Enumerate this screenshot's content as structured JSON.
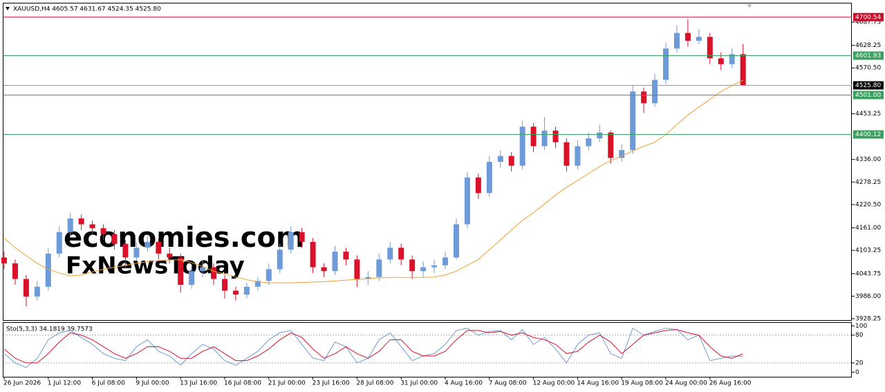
{
  "chart_data": {
    "type": "candlestick",
    "header": "XAUUSD,H4  4605.57 4631.67 4524.35 4525.80",
    "watermarks": [
      "economies.com",
      "FxNewsToday"
    ],
    "categories": [
      "26 Jun 2026",
      null,
      null,
      null,
      "1 Jul 12:00",
      null,
      null,
      null,
      "6 Jul 08:00",
      null,
      null,
      null,
      "9 Jul 00:00",
      null,
      null,
      null,
      "13 Jul 16:00",
      null,
      null,
      null,
      "16 Jul 08:00",
      null,
      null,
      null,
      "21 Jul 00:00",
      null,
      null,
      null,
      "23 Jul 16:00",
      null,
      null,
      null,
      "28 Jul 08:00",
      null,
      null,
      null,
      "31 Jul 00:00",
      null,
      null,
      null,
      "4 Aug 16:00",
      null,
      null,
      null,
      "7 Aug 08:00",
      null,
      null,
      null,
      "12 Aug 00:00",
      null,
      null,
      null,
      "14 Aug 16:00",
      null,
      null,
      null,
      "19 Aug 08:00",
      null,
      null,
      null,
      "24 Aug 00:00",
      null,
      null,
      null,
      "26 Aug 16:00",
      null,
      null,
      null
    ],
    "ohlc": [
      [
        4085,
        4100,
        4055,
        4070
      ],
      [
        4070,
        4080,
        4015,
        4030
      ],
      [
        4030,
        4040,
        3960,
        3985
      ],
      [
        3985,
        4025,
        3975,
        4010
      ],
      [
        4010,
        4110,
        4000,
        4095
      ],
      [
        4095,
        4165,
        4085,
        4150
      ],
      [
        4150,
        4200,
        4140,
        4185
      ],
      [
        4185,
        4195,
        4155,
        4170
      ],
      [
        4170,
        4180,
        4145,
        4160
      ],
      [
        4160,
        4170,
        4130,
        4145
      ],
      [
        4145,
        4155,
        4105,
        4120
      ],
      [
        4120,
        4130,
        4060,
        4085
      ],
      [
        4085,
        4125,
        4075,
        4110
      ],
      [
        4110,
        4140,
        4100,
        4125
      ],
      [
        4125,
        4135,
        4080,
        4095
      ],
      [
        4095,
        4110,
        4070,
        4085
      ],
      [
        4085,
        4095,
        3995,
        4015
      ],
      [
        4015,
        4065,
        4005,
        4050
      ],
      [
        4050,
        4080,
        4035,
        4060
      ],
      [
        4060,
        4070,
        4015,
        4030
      ],
      [
        4030,
        4040,
        3980,
        4000
      ],
      [
        4000,
        4010,
        3975,
        3990
      ],
      [
        3990,
        4020,
        3980,
        4010
      ],
      [
        4010,
        4035,
        4000,
        4025
      ],
      [
        4025,
        4070,
        4015,
        4055
      ],
      [
        4055,
        4120,
        4045,
        4105
      ],
      [
        4105,
        4165,
        4095,
        4150
      ],
      [
        4150,
        4160,
        4110,
        4125
      ],
      [
        4125,
        4135,
        4045,
        4060
      ],
      [
        4060,
        4070,
        4035,
        4050
      ],
      [
        4050,
        4115,
        4040,
        4100
      ],
      [
        4100,
        4110,
        4065,
        4080
      ],
      [
        4080,
        4090,
        4010,
        4030
      ],
      [
        4030,
        4050,
        4015,
        4035
      ],
      [
        4035,
        4095,
        4025,
        4080
      ],
      [
        4080,
        4125,
        4070,
        4110
      ],
      [
        4110,
        4120,
        4065,
        4080
      ],
      [
        4080,
        4090,
        4030,
        4050
      ],
      [
        4050,
        4075,
        4035,
        4060
      ],
      [
        4060,
        4080,
        4045,
        4065
      ],
      [
        4065,
        4100,
        4055,
        4085
      ],
      [
        4085,
        4185,
        4080,
        4170
      ],
      [
        4170,
        4305,
        4160,
        4290
      ],
      [
        4290,
        4300,
        4235,
        4250
      ],
      [
        4250,
        4345,
        4240,
        4330
      ],
      [
        4330,
        4360,
        4315,
        4345
      ],
      [
        4345,
        4355,
        4305,
        4320
      ],
      [
        4320,
        4435,
        4310,
        4420
      ],
      [
        4420,
        4430,
        4355,
        4370
      ],
      [
        4370,
        4445,
        4360,
        4410
      ],
      [
        4410,
        4420,
        4365,
        4380
      ],
      [
        4380,
        4390,
        4305,
        4320
      ],
      [
        4320,
        4385,
        4310,
        4370
      ],
      [
        4370,
        4405,
        4360,
        4390
      ],
      [
        4390,
        4425,
        4380,
        4405
      ],
      [
        4405,
        4410,
        4325,
        4340
      ],
      [
        4340,
        4375,
        4330,
        4360
      ],
      [
        4360,
        4525,
        4350,
        4510
      ],
      [
        4510,
        4520,
        4455,
        4480
      ],
      [
        4480,
        4555,
        4470,
        4540
      ],
      [
        4540,
        4635,
        4530,
        4620
      ],
      [
        4620,
        4680,
        4610,
        4660
      ],
      [
        4660,
        4695,
        4625,
        4640
      ],
      [
        4640,
        4670,
        4630,
        4650
      ],
      [
        4650,
        4660,
        4580,
        4595
      ],
      [
        4595,
        4610,
        4565,
        4580
      ],
      [
        4580,
        4620,
        4570,
        4605.57
      ],
      [
        4605.57,
        4631.67,
        4524.35,
        4525.8
      ]
    ],
    "up_color": "#6f9ad8",
    "down_color": "#d9122a",
    "ma": {
      "color": "#f0a030",
      "values": [
        4135,
        4110,
        4090,
        4070,
        4055,
        4045,
        4038,
        4040,
        4048,
        4055,
        4060,
        4065,
        4070,
        4074,
        4077,
        4079,
        4079,
        4072,
        4062,
        4050,
        4043,
        4035,
        4028,
        4023,
        4020,
        4020,
        4020,
        4021,
        4022,
        4023,
        4025,
        4027,
        4029,
        4031,
        4033,
        4034,
        4034,
        4034,
        4034,
        4035,
        4040,
        4050,
        4065,
        4080,
        4105,
        4130,
        4155,
        4180,
        4200,
        4222,
        4245,
        4265,
        4282,
        4300,
        4318,
        4333,
        4345,
        4358,
        4370,
        4380,
        4400,
        4425,
        4450,
        4470,
        4490,
        4510,
        4525,
        4539
      ]
    },
    "ylim": [
      3924.7,
      4737.3
    ],
    "yticks": [
      4687.75,
      4628.25,
      {
        "value": 4570.5,
        "label": "4570.50"
      },
      4453.25,
      {
        "value": 4336,
        "label": "4336.00"
      },
      4278.25,
      {
        "value": 4220.5,
        "label": "4220.50"
      },
      {
        "value": 4161,
        "label": "4161.00"
      },
      4103.25,
      4043.75,
      {
        "value": 3986,
        "label": "3986.00"
      },
      3928.25
    ],
    "levels": [
      {
        "value": 4700.54,
        "label": "4700.54",
        "color": "#c8102e"
      },
      {
        "value": 4601.93,
        "label": "4601.93",
        "color": "#3aa060"
      },
      {
        "value": 4501,
        "label": "4501.00",
        "color": "#3aa060"
      },
      {
        "value": 4400.12,
        "label": "4400.12",
        "color": "#3aa060"
      },
      {
        "value": 4525.8,
        "label": "4525.80",
        "color": "#000000"
      }
    ],
    "indicator": {
      "label": "Sto(5,3,3) 34.1819 39.7573",
      "ylim": [
        -10,
        108
      ],
      "yticks": [
        100,
        80,
        20,
        0
      ],
      "levels": [
        80,
        20
      ],
      "series": [
        {
          "color": "#6f9ad8",
          "values": [
            40,
            20,
            10,
            30,
            70,
            85,
            90,
            75,
            60,
            40,
            30,
            25,
            55,
            70,
            45,
            35,
            15,
            40,
            60,
            50,
            25,
            15,
            30,
            45,
            70,
            85,
            90,
            60,
            30,
            25,
            65,
            55,
            20,
            30,
            70,
            85,
            55,
            25,
            35,
            40,
            60,
            90,
            95,
            80,
            88,
            90,
            70,
            92,
            60,
            75,
            50,
            20,
            60,
            80,
            85,
            40,
            30,
            95,
            80,
            88,
            95,
            92,
            70,
            80,
            25,
            30,
            35,
            34.1819
          ]
        },
        {
          "color": "#d9122a",
          "values": [
            50,
            30,
            20,
            20,
            40,
            65,
            85,
            80,
            70,
            55,
            40,
            30,
            40,
            55,
            55,
            45,
            30,
            30,
            45,
            55,
            40,
            25,
            25,
            35,
            50,
            70,
            85,
            75,
            50,
            30,
            40,
            55,
            40,
            30,
            45,
            70,
            70,
            45,
            35,
            35,
            45,
            70,
            90,
            90,
            85,
            88,
            80,
            85,
            75,
            70,
            60,
            40,
            45,
            65,
            80,
            65,
            40,
            60,
            80,
            85,
            90,
            92,
            85,
            80,
            55,
            35,
            30,
            39.7573
          ]
        }
      ]
    }
  }
}
